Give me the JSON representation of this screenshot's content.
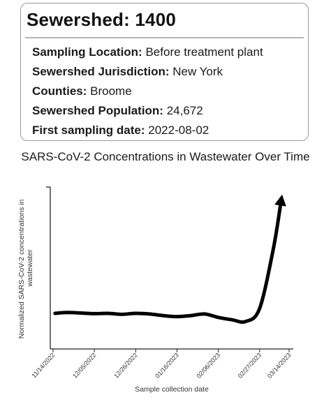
{
  "card": {
    "title": "Sewershed: 1400",
    "rows": [
      {
        "label": "Sampling Location:",
        "value": "Before treatment plant"
      },
      {
        "label": "Sewershed Jurisdiction:",
        "value": "New York"
      },
      {
        "label": "Counties:",
        "value": "Broome"
      },
      {
        "label": "Sewershed Population:",
        "value": "24,672"
      },
      {
        "label": "First sampling date:",
        "value": "2022-08-02"
      }
    ]
  },
  "chart_data": {
    "type": "line",
    "title": "SARS-CoV-2 Concentrations in Wastewater Over Time",
    "xlabel": "Sample collection date",
    "ylabel": "Normalized SARS-CoV-2 concentrations in wastewater",
    "x_ticks": [
      "11/14/2022",
      "12/05/2022",
      "12/26/2022",
      "01/16/2023",
      "02/06/2023",
      "02/27/2023",
      "03/14/2023"
    ],
    "x_range": [
      "2022-11-14",
      "2023-03-14"
    ],
    "y_ticks_labeled": false,
    "grid": false,
    "series": [
      {
        "points": [
          {
            "x": "2022-11-15",
            "y": 0.22
          },
          {
            "x": "2022-11-21",
            "y": 0.225
          },
          {
            "x": "2022-11-28",
            "y": 0.222
          },
          {
            "x": "2022-12-05",
            "y": 0.218
          },
          {
            "x": "2022-12-12",
            "y": 0.22
          },
          {
            "x": "2022-12-19",
            "y": 0.214
          },
          {
            "x": "2022-12-26",
            "y": 0.22
          },
          {
            "x": "2023-01-02",
            "y": 0.216
          },
          {
            "x": "2023-01-09",
            "y": 0.206
          },
          {
            "x": "2023-01-16",
            "y": 0.2
          },
          {
            "x": "2023-01-23",
            "y": 0.206
          },
          {
            "x": "2023-01-30",
            "y": 0.216
          },
          {
            "x": "2023-02-06",
            "y": 0.195
          },
          {
            "x": "2023-02-13",
            "y": 0.18
          },
          {
            "x": "2023-02-20",
            "y": 0.17
          },
          {
            "x": "2023-02-27",
            "y": 0.25
          },
          {
            "x": "2023-03-06",
            "y": 0.62
          },
          {
            "x": "2023-03-10",
            "y": 0.92
          }
        ]
      }
    ],
    "line_color": "#000000",
    "end_marker": "arrow"
  }
}
